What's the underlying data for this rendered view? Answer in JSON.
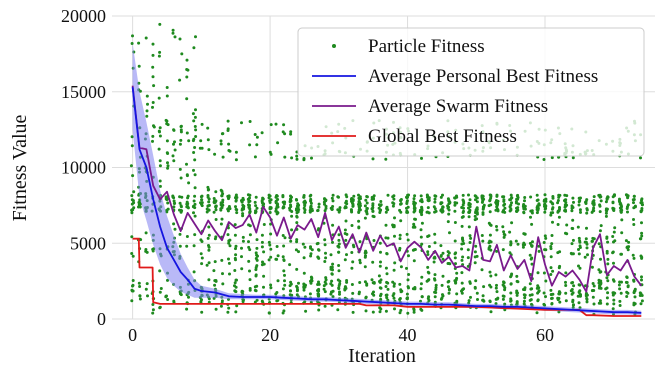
{
  "chart_data": {
    "type": "scatter",
    "xlabel": "Iteration",
    "ylabel": "Fitness Value",
    "xlim": [
      -3,
      76
    ],
    "ylim": [
      0,
      20000
    ],
    "x_ticks": [
      0,
      20,
      40,
      60
    ],
    "x_tick_labels": [
      "0",
      "20",
      "40",
      "60"
    ],
    "y_ticks": [
      0,
      5000,
      10000,
      15000,
      20000
    ],
    "y_tick_labels": [
      "0",
      "5000",
      "10000",
      "15000",
      "20000"
    ],
    "grid": true,
    "legend_position": "top-right",
    "legend": [
      {
        "label": "Particle Fitness",
        "marker": "dot",
        "color": "#1f8a1f"
      },
      {
        "label": "Average Personal Best Fitness",
        "marker": "line",
        "color": "#1515e0"
      },
      {
        "label": "Average Swarm Fitness",
        "marker": "line",
        "color": "#7a1a8c"
      },
      {
        "label": "Global Best Fitness",
        "marker": "line",
        "color": "#e01a1a"
      }
    ],
    "colors": {
      "particle": "#1f8a1f",
      "personal_best": "#1515e0",
      "personal_best_band": "#8080f0",
      "swarm": "#7a1a8c",
      "global_best": "#e01a1a"
    },
    "series": [
      {
        "key": "personal_best",
        "type": "line",
        "x": [
          0,
          1,
          2,
          3,
          4,
          5,
          6,
          7,
          8,
          9,
          10,
          12,
          14,
          16,
          18,
          20,
          22,
          24,
          26,
          28,
          30,
          32,
          34,
          36,
          38,
          40,
          42,
          44,
          46,
          48,
          50,
          52,
          54,
          56,
          58,
          60,
          62,
          64,
          66,
          68,
          70,
          72,
          74
        ],
        "y": [
          15300,
          11200,
          10000,
          7900,
          6100,
          4700,
          3900,
          3100,
          2600,
          2000,
          1850,
          1750,
          1500,
          1450,
          1450,
          1450,
          1400,
          1350,
          1300,
          1300,
          1250,
          1200,
          1150,
          1100,
          1050,
          1000,
          1000,
          950,
          950,
          900,
          850,
          850,
          800,
          800,
          750,
          700,
          650,
          600,
          550,
          500,
          450,
          450,
          400
        ],
        "band_upper": [
          18200,
          15000,
          13000,
          10800,
          8500,
          6800,
          5500,
          4300,
          3400,
          2600,
          2200,
          2000,
          1700,
          1650,
          1600,
          1600,
          1550,
          1500,
          1450,
          1450,
          1400,
          1350,
          1300,
          1250,
          1200,
          1150,
          1150,
          1100,
          1100,
          1050,
          1000,
          1000,
          950,
          950,
          900,
          850,
          800,
          750,
          700,
          650,
          600,
          600,
          550
        ],
        "band_lower": [
          12500,
          8000,
          6500,
          4900,
          3600,
          2700,
          2200,
          1800,
          1600,
          1400,
          1400,
          1400,
          1300,
          1300,
          1300,
          1300,
          1250,
          1200,
          1150,
          1150,
          1100,
          1050,
          1000,
          950,
          900,
          850,
          850,
          800,
          800,
          750,
          700,
          700,
          650,
          650,
          600,
          550,
          500,
          450,
          400,
          350,
          300,
          300,
          250
        ]
      },
      {
        "key": "swarm",
        "type": "line",
        "x": [
          0,
          1,
          2,
          3,
          4,
          5,
          6,
          7,
          8,
          9,
          10,
          11,
          12,
          13,
          14,
          15,
          16,
          17,
          18,
          19,
          20,
          21,
          22,
          23,
          24,
          25,
          26,
          27,
          28,
          29,
          30,
          31,
          32,
          33,
          34,
          35,
          36,
          37,
          38,
          39,
          40,
          41,
          42,
          43,
          44,
          45,
          46,
          47,
          48,
          49,
          50,
          51,
          52,
          53,
          54,
          55,
          56,
          57,
          58,
          59,
          60,
          61,
          62,
          63,
          64,
          65,
          66,
          67,
          68,
          69,
          70,
          71,
          72,
          73,
          74
        ],
        "y": [
          15400,
          11300,
          11200,
          8800,
          7900,
          8400,
          6900,
          5800,
          7000,
          6300,
          5600,
          6500,
          5800,
          5200,
          6400,
          6000,
          6200,
          6900,
          5700,
          7400,
          6700,
          5500,
          6700,
          5300,
          6200,
          5900,
          6600,
          5400,
          7000,
          5200,
          6100,
          4700,
          5600,
          4400,
          5700,
          4500,
          5500,
          4800,
          5000,
          3800,
          4700,
          5100,
          4700,
          3900,
          4500,
          3700,
          4100,
          3400,
          3500,
          3200,
          6100,
          3900,
          3800,
          4900,
          3200,
          4200,
          3300,
          3900,
          2500,
          5400,
          3600,
          2200,
          3100,
          2800,
          3200,
          2600,
          1800,
          4700,
          5600,
          2900,
          3500,
          3200,
          3900,
          2800,
          2200
        ]
      },
      {
        "key": "global_best",
        "type": "line",
        "x": [
          0,
          0.9,
          1,
          2,
          2.9,
          3,
          4,
          10,
          14,
          20,
          30,
          33,
          34,
          38,
          40,
          50,
          55,
          60,
          65,
          66,
          67,
          70,
          74
        ],
        "y": [
          5300,
          5300,
          3400,
          3400,
          3400,
          1100,
          1000,
          1000,
          1000,
          1000,
          1000,
          1000,
          900,
          900,
          800,
          800,
          700,
          600,
          600,
          250,
          250,
          200,
          200
        ]
      }
    ],
    "particle_fitness": {
      "type": "scatter",
      "iterations": 75,
      "particles_per_iteration": 30,
      "y_range": [
        0,
        20000
      ]
    }
  }
}
